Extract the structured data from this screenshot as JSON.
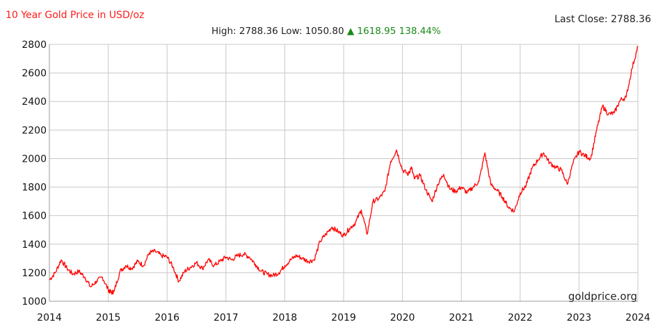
{
  "header": {
    "title": "10 Year Gold Price in USD/oz",
    "last_close_label": "Last Close:",
    "last_close_value": "2788.36",
    "high_label": "High:",
    "high_value": "2788.36",
    "low_label": "Low:",
    "low_value": "1050.80",
    "change_arrow": "▲",
    "change_value": "1618.95",
    "change_pct": "138.44%"
  },
  "watermark": "goldprice.org",
  "colors": {
    "line": "#ff0000",
    "title": "#ff1a1a",
    "up": "#1a8a1a",
    "grid": "#c8c8c8"
  },
  "chart_data": {
    "type": "line",
    "title": "10 Year Gold Price in USD/oz",
    "xlabel": "",
    "ylabel": "",
    "xlim": [
      2014,
      2024
    ],
    "ylim": [
      1000,
      2800
    ],
    "xticks": [
      "2014",
      "2015",
      "2016",
      "2017",
      "2018",
      "2019",
      "2020",
      "2021",
      "2022",
      "2023",
      "2024"
    ],
    "yticks": [
      "1000",
      "1200",
      "1400",
      "1600",
      "1800",
      "2000",
      "2200",
      "2400",
      "2600",
      "2800"
    ],
    "grid": true,
    "series": [
      {
        "color": "#ff0000",
        "x": [
          2014.0,
          2014.1,
          2014.2,
          2014.3,
          2014.4,
          2014.5,
          2014.6,
          2014.7,
          2014.8,
          2014.9,
          2015.0,
          2015.05,
          2015.1,
          2015.2,
          2015.3,
          2015.4,
          2015.5,
          2015.6,
          2015.7,
          2015.8,
          2015.9,
          2016.0,
          2016.1,
          2016.2,
          2016.3,
          2016.4,
          2016.5,
          2016.6,
          2016.7,
          2016.8,
          2016.9,
          2017.0,
          2017.1,
          2017.2,
          2017.3,
          2017.4,
          2017.5,
          2017.6,
          2017.7,
          2017.8,
          2017.9,
          2018.0,
          2018.1,
          2018.2,
          2018.3,
          2018.4,
          2018.5,
          2018.6,
          2018.7,
          2018.8,
          2018.9,
          2019.0,
          2019.1,
          2019.2,
          2019.3,
          2019.4,
          2019.5,
          2019.6,
          2019.7,
          2019.8,
          2019.9,
          2020.0,
          2020.1,
          2020.15,
          2020.2,
          2020.3,
          2020.4,
          2020.5,
          2020.6,
          2020.7,
          2020.8,
          2020.9,
          2021.0,
          2021.1,
          2021.2,
          2021.3,
          2021.4,
          2021.5,
          2021.6,
          2021.7,
          2021.8,
          2021.9,
          2022.0,
          2022.1,
          2022.2,
          2022.3,
          2022.4,
          2022.5,
          2022.6,
          2022.7,
          2022.8,
          2022.9,
          2023.0,
          2023.1,
          2023.2,
          2023.3,
          2023.4,
          2023.5,
          2023.6,
          2023.7,
          2023.8,
          2023.9,
          2024.0
        ],
        "values": [
          1150,
          1200,
          1290,
          1230,
          1190,
          1210,
          1170,
          1100,
          1140,
          1170,
          1080,
          1060,
          1070,
          1210,
          1250,
          1230,
          1280,
          1250,
          1340,
          1350,
          1320,
          1310,
          1240,
          1140,
          1210,
          1240,
          1270,
          1230,
          1290,
          1250,
          1280,
          1310,
          1290,
          1320,
          1330,
          1310,
          1260,
          1210,
          1190,
          1180,
          1200,
          1250,
          1290,
          1320,
          1300,
          1280,
          1290,
          1420,
          1470,
          1520,
          1490,
          1460,
          1510,
          1550,
          1640,
          1470,
          1700,
          1720,
          1770,
          1980,
          2060,
          1920,
          1890,
          1940,
          1860,
          1880,
          1780,
          1700,
          1820,
          1890,
          1790,
          1770,
          1800,
          1760,
          1800,
          1840,
          2040,
          1820,
          1780,
          1730,
          1660,
          1630,
          1760,
          1810,
          1930,
          1990,
          2040,
          1970,
          1940,
          1920,
          1820,
          1970,
          2050,
          2020,
          2000,
          2200,
          2370,
          2310,
          2320,
          2410,
          2430,
          2630,
          2788
        ]
      }
    ]
  }
}
